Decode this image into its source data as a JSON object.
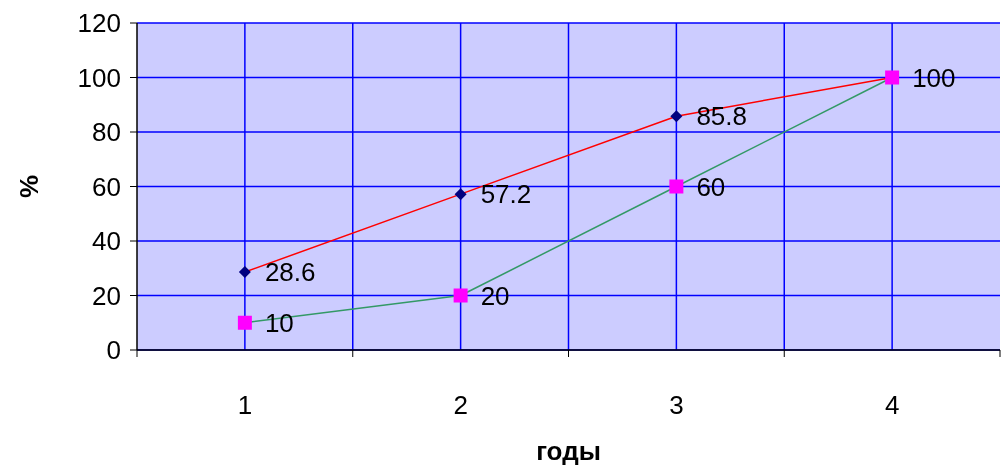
{
  "chart_data": {
    "type": "line",
    "xlabel": "годы",
    "ylabel": "%",
    "categories": [
      "1",
      "2",
      "3",
      "4"
    ],
    "ylim": [
      0,
      120
    ],
    "yticks": [
      0,
      20,
      40,
      60,
      80,
      100,
      120
    ],
    "grid": true,
    "series": [
      {
        "color": "#ff0000",
        "colors": [
          "#000080",
          "#000080",
          "#000080",
          "#000080"
        ],
        "marker": "diamond",
        "values": [
          28.6,
          57.2,
          85.8,
          100
        ],
        "value_labels": [
          "28.6",
          "57.2",
          "85.8",
          "100"
        ]
      },
      {
        "color": "#339966",
        "colors": [
          "#ff00ff",
          "#ff00ff",
          "#ff00ff",
          "#ff00ff"
        ],
        "marker": "square",
        "values": [
          10,
          20,
          60,
          100
        ],
        "value_labels": [
          "10",
          "20",
          "60",
          null
        ]
      }
    ]
  }
}
